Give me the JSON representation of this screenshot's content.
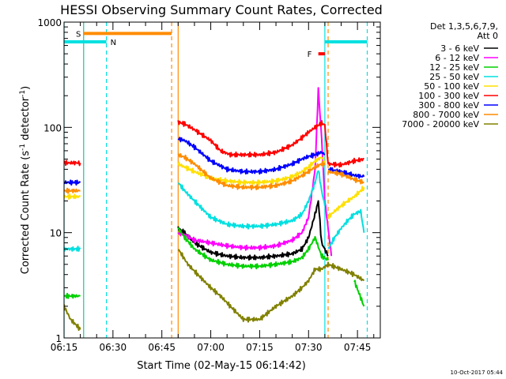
{
  "chart_data": {
    "type": "line",
    "title": "HESSI Observing Summary Count Rates, Corrected",
    "xlabel": "Start Time (02-May-15 06:14:42)",
    "ylabel_main": "Corrected Count Rate (s",
    "ylabel_sup1": "-1",
    "ylabel_mid": " detector",
    "ylabel_sup2": "-1",
    "ylabel_end": ")",
    "xlim": [
      "06:15",
      "07:52"
    ],
    "ylim": [
      1,
      1000
    ],
    "yscale": "log",
    "xticks": [
      "06:15",
      "06:30",
      "06:45",
      "07:00",
      "07:15",
      "07:30",
      "07:45"
    ],
    "yticks": [
      {
        "label": "1",
        "value": 1
      },
      {
        "label": "10",
        "value": 10
      },
      {
        "label": "100",
        "value": 100
      },
      {
        "label": "1000",
        "value": 1000
      }
    ],
    "legend_header": [
      "Det 1,3,5,6,7,9,",
      "Att 0"
    ],
    "legend_position": "right",
    "series": [
      {
        "name": "3 - 6 keV",
        "color": "#000000",
        "segments": [
          {
            "t": [
              "06:50",
              "06:52",
              "06:55",
              "07:00",
              "07:05",
              "07:10",
              "07:15",
              "07:20",
              "07:25",
              "07:28",
              "07:30",
              "07:32",
              "07:33",
              "07:34",
              "07:36"
            ],
            "v": [
              11,
              10,
              8,
              6.5,
              6,
              5.8,
              5.8,
              6,
              6.3,
              7,
              9,
              15,
              20,
              8,
              6
            ]
          }
        ]
      },
      {
        "name": "6 - 12 keV",
        "color": "#ff00ff",
        "segments": [
          {
            "t": [
              "06:50",
              "06:52",
              "06:55",
              "07:00",
              "07:05",
              "07:10",
              "07:15",
              "07:20",
              "07:25",
              "07:28",
              "07:30",
              "07:32",
              "07:33",
              "07:34",
              "07:35",
              "07:37"
            ],
            "v": [
              10,
              9.5,
              8.5,
              8,
              7.5,
              7.2,
              7.2,
              7.5,
              8.5,
              10,
              14,
              40,
              230,
              80,
              20,
              6
            ]
          }
        ]
      },
      {
        "name": "12 - 25 keV",
        "color": "#00d000",
        "segments": [
          {
            "t": [
              "06:15",
              "06:20"
            ],
            "v": [
              2.5,
              2.5
            ]
          },
          {
            "t": [
              "06:50",
              "06:52",
              "06:55",
              "07:00",
              "07:05",
              "07:10",
              "07:15",
              "07:20",
              "07:25",
              "07:28",
              "07:30",
              "07:32",
              "07:34",
              "07:36"
            ],
            "v": [
              11,
              9,
              7,
              5.5,
              5,
              4.8,
              4.8,
              5,
              5.3,
              5.8,
              7,
              9,
              6,
              5.5
            ]
          },
          {
            "t": [
              "07:44",
              "07:47"
            ],
            "v": [
              3.5,
              2
            ]
          }
        ]
      },
      {
        "name": "25 - 50 keV",
        "color": "#00e0e0",
        "segments": [
          {
            "t": [
              "06:15",
              "06:20"
            ],
            "v": [
              7,
              7
            ]
          },
          {
            "t": [
              "06:50",
              "06:52",
              "06:55",
              "07:00",
              "07:05",
              "07:10",
              "07:15",
              "07:20",
              "07:25",
              "07:28",
              "07:30",
              "07:32",
              "07:33",
              "07:34",
              "07:35"
            ],
            "v": [
              30,
              25,
              20,
              14,
              12,
              11.5,
              11.5,
              12,
              13,
              15,
              20,
              30,
              40,
              25,
              18
            ]
          },
          {
            "t": [
              "07:36",
              "07:38",
              "07:40",
              "07:42",
              "07:44",
              "07:46",
              "07:47"
            ],
            "v": [
              7,
              9,
              11,
              13,
              15,
              16,
              10
            ]
          }
        ]
      },
      {
        "name": "50 - 100 keV",
        "color": "#ffe000",
        "segments": [
          {
            "t": [
              "06:15",
              "06:20"
            ],
            "v": [
              22,
              22
            ]
          },
          {
            "t": [
              "06:50",
              "06:52",
              "06:55",
              "07:00",
              "07:05",
              "07:10",
              "07:15",
              "07:20",
              "07:25",
              "07:28",
              "07:30",
              "07:32",
              "07:34",
              "07:35"
            ],
            "v": [
              45,
              42,
              38,
              33,
              31,
              30,
              30,
              31,
              34,
              38,
              42,
              48,
              52,
              48
            ]
          },
          {
            "t": [
              "07:36",
              "07:38",
              "07:40",
              "07:42",
              "07:44",
              "07:46",
              "07:47"
            ],
            "v": [
              14,
              16,
              18,
              20,
              22,
              25,
              27
            ]
          }
        ]
      },
      {
        "name": "100 - 300 keV",
        "color": "#ff0000",
        "segments": [
          {
            "t": [
              "06:15",
              "06:20"
            ],
            "v": [
              46,
              46
            ]
          },
          {
            "t": [
              "06:50",
              "06:52",
              "06:55",
              "07:00",
              "07:03",
              "07:06",
              "07:10",
              "07:15",
              "07:20",
              "07:25",
              "07:28",
              "07:30",
              "07:32",
              "07:34",
              "07:35",
              "07:36"
            ],
            "v": [
              112,
              108,
              95,
              75,
              60,
              55,
              55,
              55,
              58,
              68,
              80,
              90,
              100,
              110,
              105,
              45
            ]
          },
          {
            "t": [
              "07:36",
              "07:40",
              "07:44",
              "07:47"
            ],
            "v": [
              45,
              44,
              48,
              50
            ]
          }
        ]
      },
      {
        "name": "300 - 800 keV",
        "color": "#0000ff",
        "segments": [
          {
            "t": [
              "06:15",
              "06:20"
            ],
            "v": [
              30,
              30
            ]
          },
          {
            "t": [
              "06:50",
              "06:52",
              "06:55",
              "07:00",
              "07:05",
              "07:10",
              "07:15",
              "07:20",
              "07:25",
              "07:28",
              "07:30",
              "07:32",
              "07:34",
              "07:35"
            ],
            "v": [
              78,
              75,
              65,
              48,
              40,
              38,
              38,
              40,
              45,
              50,
              53,
              55,
              58,
              55
            ]
          },
          {
            "t": [
              "07:36",
              "07:40",
              "07:44",
              "07:47"
            ],
            "v": [
              40,
              38,
              35,
              34
            ]
          }
        ]
      },
      {
        "name": "800 - 7000 keV",
        "color": "#ff8c00",
        "segments": [
          {
            "t": [
              "06:15",
              "06:20"
            ],
            "v": [
              25,
              25
            ]
          },
          {
            "t": [
              "06:50",
              "06:52",
              "06:55",
              "07:00",
              "07:05",
              "07:10",
              "07:15",
              "07:20",
              "07:25",
              "07:28",
              "07:30",
              "07:32",
              "07:34",
              "07:35"
            ],
            "v": [
              55,
              52,
              45,
              33,
              28,
              27,
              27,
              28,
              31,
              35,
              38,
              42,
              45,
              44
            ]
          },
          {
            "t": [
              "07:36",
              "07:40",
              "07:44",
              "07:47"
            ],
            "v": [
              38,
              36,
              32,
              30
            ]
          }
        ]
      },
      {
        "name": "7000 - 20000 keV",
        "color": "#808000",
        "segments": [
          {
            "t": [
              "06:15",
              "06:17",
              "06:19",
              "06:20"
            ],
            "v": [
              2,
              1.5,
              1.3,
              1.2
            ]
          },
          {
            "t": [
              "06:50",
              "06:53",
              "06:56",
              "07:00",
              "07:03",
              "07:06",
              "07:10",
              "07:15",
              "07:20",
              "07:25",
              "07:28",
              "07:30",
              "07:32",
              "07:34",
              "07:36",
              "07:40",
              "07:44",
              "07:47"
            ],
            "v": [
              7,
              5,
              4,
              3,
              2.5,
              2,
              1.5,
              1.5,
              2,
              2.5,
              3,
              3.5,
              4.5,
              4.5,
              5,
              4.5,
              4,
              3.5
            ]
          }
        ]
      }
    ],
    "state_bars": [
      {
        "label": "S",
        "color": "#ff8c00",
        "t_start": "06:21",
        "t_end": "06:48",
        "value": 780
      },
      {
        "label": "N",
        "color": "#00e0e0",
        "t_start": "06:15",
        "t_end": "06:28",
        "value": 650
      },
      {
        "label": "",
        "color": "#00e0e0",
        "t_start": "07:35",
        "t_end": "07:48",
        "value": 650
      },
      {
        "label": "F",
        "color": "#ff0000",
        "t_start": "07:33",
        "t_end": "07:35",
        "value": 500
      }
    ],
    "vertical_markers": [
      {
        "t": "06:15",
        "color": "#00e0e0",
        "style": "solid"
      },
      {
        "t": "06:21",
        "color": "#ff8c00",
        "style": "solid"
      },
      {
        "t": "06:21",
        "color": "#00e0e0",
        "style": "solid"
      },
      {
        "t": "06:28",
        "color": "#00e0e0",
        "style": "dashed"
      },
      {
        "t": "06:48",
        "color": "#ff8c00",
        "style": "dashed"
      },
      {
        "t": "06:50",
        "color": "#ff8c00",
        "style": "solid"
      },
      {
        "t": "07:35",
        "color": "#00e0e0",
        "style": "solid"
      },
      {
        "t": "07:36",
        "color": "#ff8c00",
        "style": "dashed"
      },
      {
        "t": "07:48",
        "color": "#00e0e0",
        "style": "dashed"
      }
    ]
  },
  "footer": {
    "timestamp": "10-Oct-2017 05:44"
  }
}
